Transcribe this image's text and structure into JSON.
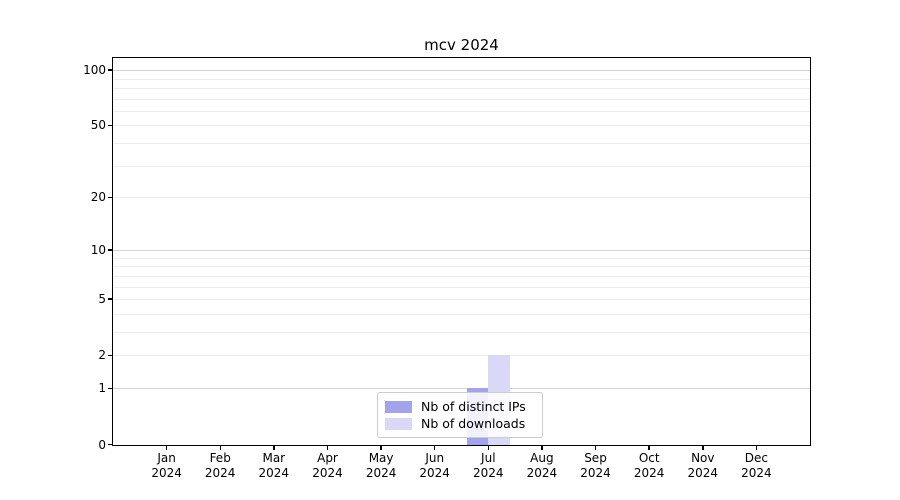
{
  "chart_data": {
    "type": "bar",
    "title": "mcv 2024",
    "categories": [
      "Jan",
      "Feb",
      "Mar",
      "Apr",
      "May",
      "Jun",
      "Jul",
      "Aug",
      "Sep",
      "Oct",
      "Nov",
      "Dec"
    ],
    "year": "2024",
    "series": [
      {
        "name": "Nb of distinct IPs",
        "color": "#a3a3ec",
        "values": [
          0,
          0,
          0,
          0,
          0,
          0,
          1,
          0,
          0,
          0,
          0,
          0
        ]
      },
      {
        "name": "Nb of downloads",
        "color": "#d9d9f7",
        "values": [
          0,
          0,
          0,
          0,
          0,
          0,
          2,
          0,
          0,
          0,
          0,
          0
        ]
      }
    ],
    "xlabel": "",
    "ylabel": "",
    "yscale": "log1p",
    "ylim": [
      0,
      116
    ],
    "yticks": [
      0,
      1,
      2,
      5,
      10,
      20,
      50,
      100
    ],
    "grid": {
      "on": true,
      "major": [
        1,
        10,
        100
      ],
      "minor": [
        2,
        3,
        4,
        5,
        6,
        7,
        8,
        9,
        20,
        30,
        40,
        50,
        60,
        70,
        80,
        90
      ]
    },
    "legend_position": "lower center",
    "axis_color": "#000000",
    "background_color": "#ffffff"
  }
}
